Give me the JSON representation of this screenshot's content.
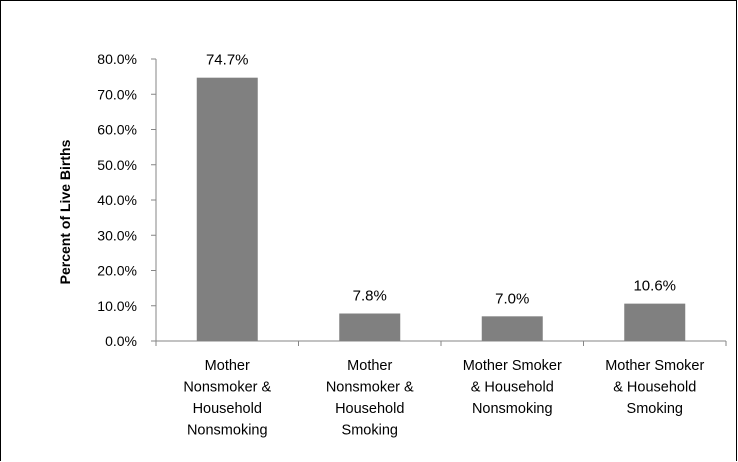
{
  "chart_data": {
    "type": "bar",
    "categories": [
      [
        "Mother",
        "Nonsmoker &",
        "Household",
        "Nonsmoking"
      ],
      [
        "Mother",
        "Nonsmoker &",
        "Household",
        "Smoking"
      ],
      [
        "Mother Smoker",
        "& Household",
        "Nonsmoking"
      ],
      [
        "Mother Smoker",
        "& Household",
        "Smoking"
      ]
    ],
    "values": [
      74.7,
      7.8,
      7.0,
      10.6
    ],
    "data_labels": [
      "74.7%",
      "7.8%",
      "7.0%",
      "10.6%"
    ],
    "ylabel": "Percent of Live Births",
    "ylim": [
      0,
      80
    ],
    "yticks": [
      "0.0%",
      "10.0%",
      "20.0%",
      "30.0%",
      "40.0%",
      "50.0%",
      "60.0%",
      "70.0%",
      "80.0%"
    ],
    "bar_color": "#808080",
    "grid": false,
    "legend": "none"
  }
}
